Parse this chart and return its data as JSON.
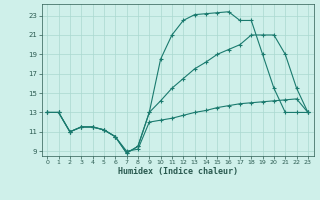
{
  "xlabel": "Humidex (Indice chaleur)",
  "bg_color": "#cff0ea",
  "grid_color": "#aad8d0",
  "line_color": "#1a7a6e",
  "xlim": [
    -0.5,
    23.5
  ],
  "ylim": [
    8.5,
    24.2
  ],
  "xticks": [
    0,
    1,
    2,
    3,
    4,
    5,
    6,
    7,
    8,
    9,
    10,
    11,
    12,
    13,
    14,
    15,
    16,
    17,
    18,
    19,
    20,
    21,
    22,
    23
  ],
  "yticks": [
    9,
    11,
    13,
    15,
    17,
    19,
    21,
    23
  ],
  "line1_x": [
    0,
    1,
    2,
    3,
    4,
    5,
    6,
    7,
    8,
    9,
    10,
    11,
    12,
    13,
    14,
    15,
    16,
    17,
    18,
    19,
    20,
    21,
    22,
    23
  ],
  "line1_y": [
    13.0,
    13.0,
    11.0,
    11.5,
    11.5,
    11.2,
    10.5,
    9.0,
    9.2,
    12.0,
    12.2,
    12.4,
    12.7,
    13.0,
    13.2,
    13.5,
    13.7,
    13.9,
    14.0,
    14.1,
    14.2,
    14.3,
    14.4,
    13.0
  ],
  "line2_x": [
    0,
    1,
    2,
    3,
    4,
    5,
    6,
    7,
    8,
    9,
    10,
    11,
    12,
    13,
    14,
    15,
    16,
    17,
    18,
    19,
    20,
    21,
    22,
    23
  ],
  "line2_y": [
    13.0,
    13.0,
    11.0,
    11.5,
    11.5,
    11.2,
    10.5,
    8.8,
    9.5,
    13.0,
    18.5,
    21.0,
    22.5,
    23.1,
    23.2,
    23.3,
    23.4,
    22.5,
    22.5,
    19.0,
    15.5,
    13.0,
    13.0,
    13.0
  ],
  "line3_x": [
    0,
    1,
    2,
    3,
    4,
    5,
    6,
    7,
    8,
    9,
    10,
    11,
    12,
    13,
    14,
    15,
    16,
    17,
    18,
    19,
    20,
    21,
    22,
    23
  ],
  "line3_y": [
    13.0,
    13.0,
    11.0,
    11.5,
    11.5,
    11.2,
    10.5,
    8.8,
    9.5,
    13.0,
    14.2,
    15.5,
    16.5,
    17.5,
    18.2,
    19.0,
    19.5,
    20.0,
    21.0,
    21.0,
    21.0,
    19.0,
    15.5,
    13.0
  ]
}
